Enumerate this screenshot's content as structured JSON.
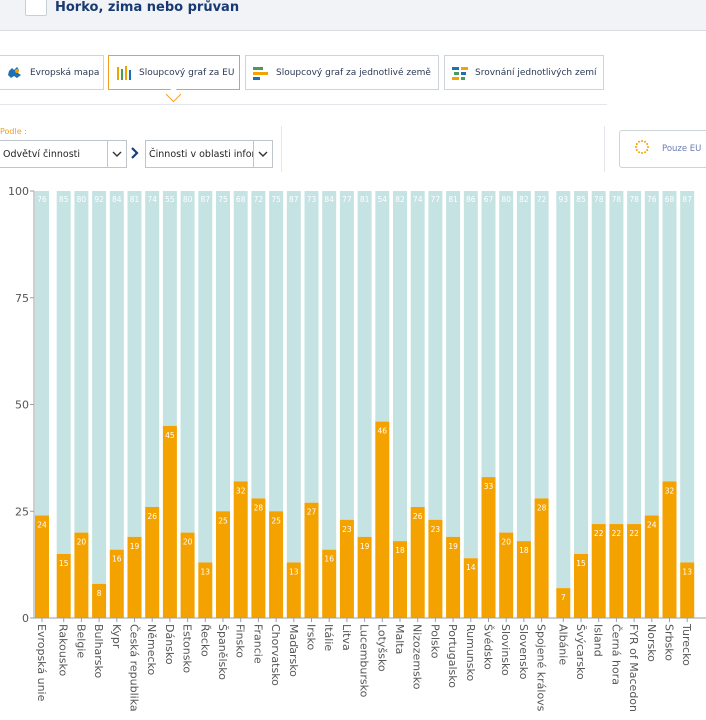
{
  "header": {
    "title": "Horko, zima nebo průvan"
  },
  "tabs": [
    {
      "label": "Evropská mapa",
      "icon": "europe-map-icon",
      "active": false
    },
    {
      "label": "Sloupcový graf za EU",
      "icon": "bar-chart-icon",
      "active": true
    },
    {
      "label": "Sloupcový graf za jednotlivé země",
      "icon": "horizontal-bar-icon",
      "active": false
    },
    {
      "label": "Srovnání jednotlivých zemí",
      "icon": "compare-icon",
      "active": false
    }
  ],
  "filters": {
    "by_label": "Podle :",
    "first_select": "Odvětví činnosti",
    "second_select": "Činnosti v oblasti infor",
    "eu_only": "Pouze EU"
  },
  "colors": {
    "positive": "#f4a200",
    "negative": "#c6e3e3",
    "accent": "#f2a01e",
    "title": "#183a73"
  },
  "chart_data": {
    "type": "bar",
    "stacked": true,
    "ylim": [
      0,
      100
    ],
    "yticks": [
      0,
      25,
      50,
      75,
      100
    ],
    "categories": [
      "Evropská unie",
      "Rakousko",
      "Belgie",
      "Bulharsko",
      "Kypr",
      "Česká republika",
      "Německo",
      "Dánsko",
      "Estonsko",
      "Řecko",
      "Španělsko",
      "Finsko",
      "Francie",
      "Chorvatsko",
      "Maďarsko",
      "Irsko",
      "Itálie",
      "Litva",
      "Lucembursko",
      "Lotyšsko",
      "Malta",
      "Nizozemsko",
      "Polsko",
      "Portugalsko",
      "Rumunsko",
      "Švédsko",
      "Slovinsko",
      "Slovensko",
      "Spojené královs",
      "Albánie",
      "Švýcarsko",
      "Island",
      "Černá hora",
      "FYR of Macedon",
      "Norsko",
      "Srbsko",
      "Turecko"
    ],
    "groups": [
      {
        "from": 0,
        "to": 0
      },
      {
        "from": 1,
        "to": 28
      },
      {
        "from": 29,
        "to": 36
      }
    ],
    "series": [
      {
        "values": [
          24,
          15,
          20,
          8,
          16,
          19,
          26,
          45,
          20,
          13,
          25,
          32,
          28,
          25,
          13,
          27,
          16,
          23,
          19,
          46,
          18,
          26,
          23,
          19,
          14,
          33,
          20,
          18,
          28,
          7,
          15,
          22,
          22,
          22,
          24,
          32,
          13
        ]
      },
      {
        "values": [
          76,
          85,
          80,
          92,
          84,
          81,
          74,
          55,
          80,
          87,
          75,
          68,
          72,
          75,
          87,
          73,
          84,
          77,
          81,
          54,
          82,
          74,
          77,
          81,
          86,
          67,
          80,
          82,
          72,
          93,
          85,
          78,
          78,
          78,
          76,
          68,
          87
        ]
      }
    ]
  }
}
